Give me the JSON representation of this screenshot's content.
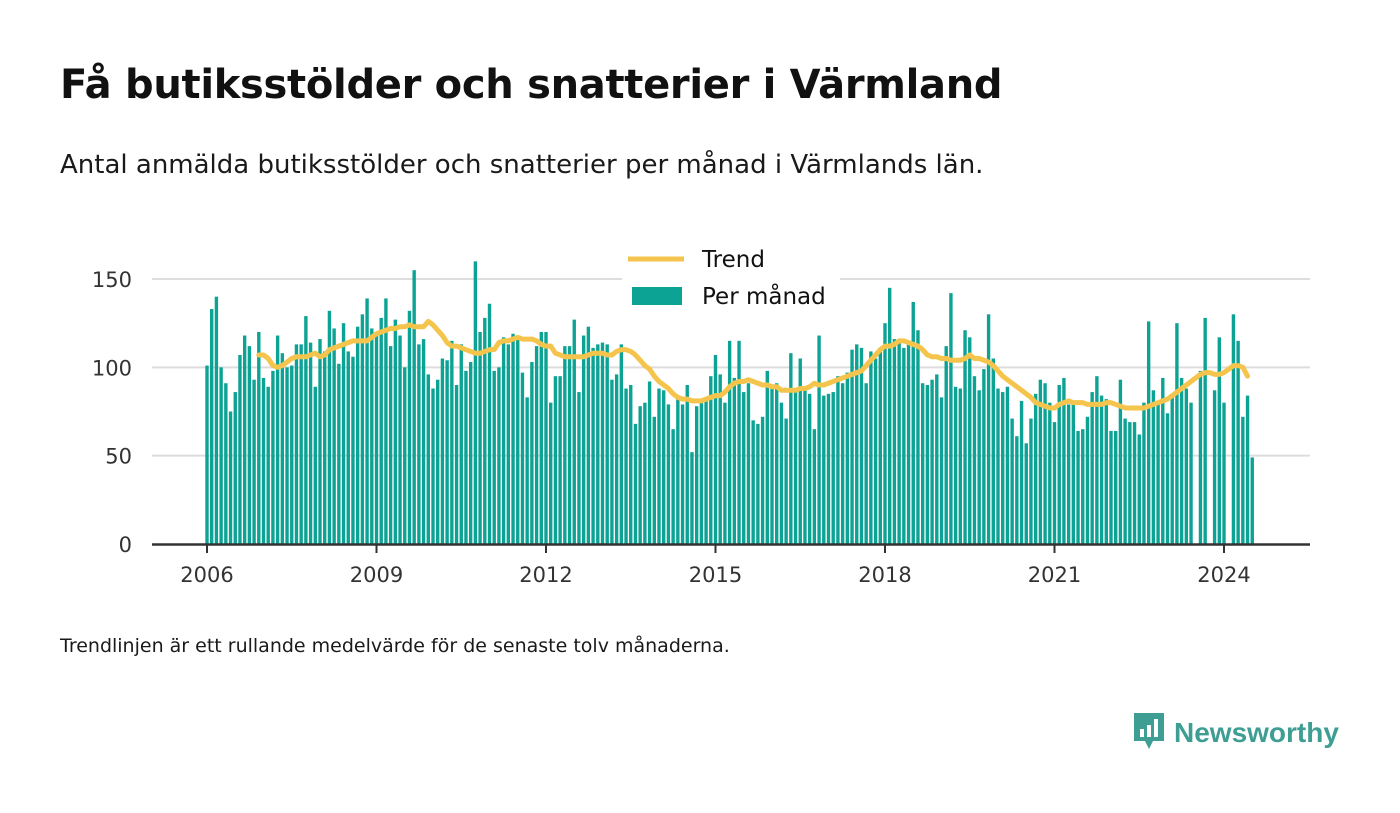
{
  "title": "Få butiksstölder och snatterier i Värmland",
  "subtitle": "Antal anmälda butiksstölder och snatterier per månad i Värmlands län.",
  "footnote": "Trendlinjen är ett rullande medelvärde för de senaste tolv månaderna.",
  "brand": {
    "name": "Newsworthy",
    "icon": "newsworthy-logo-icon",
    "color": "#3e9e94"
  },
  "colors": {
    "bar": "#0da394",
    "trend": "#f5c44c",
    "grid": "#dddddd",
    "axis": "#333333"
  },
  "chart_data": {
    "type": "bar",
    "x_start": "2006-01",
    "x_end": "2024-07",
    "xticks": [
      "2006",
      "2009",
      "2012",
      "2015",
      "2018",
      "2021",
      "2024"
    ],
    "yticks": [
      0,
      50,
      100,
      150
    ],
    "ylim": [
      0,
      160
    ],
    "grid": true,
    "legend": [
      "Trend",
      "Per månad"
    ],
    "legend_position": "top-center",
    "series": [
      {
        "name": "Per månad",
        "kind": "bar",
        "values": [
          101,
          133,
          140,
          100,
          91,
          75,
          86,
          107,
          118,
          112,
          93,
          120,
          94,
          89,
          98,
          118,
          108,
          100,
          101,
          113,
          113,
          129,
          114,
          89,
          116,
          109,
          132,
          122,
          102,
          125,
          109,
          106,
          123,
          130,
          139,
          122,
          118,
          128,
          139,
          112,
          127,
          118,
          100,
          132,
          155,
          113,
          116,
          96,
          88,
          93,
          105,
          104,
          115,
          90,
          113,
          98,
          103,
          160,
          120,
          128,
          136,
          98,
          100,
          117,
          113,
          119,
          118,
          97,
          83,
          103,
          112,
          120,
          120,
          80,
          95,
          95,
          112,
          112,
          127,
          86,
          118,
          123,
          111,
          113,
          114,
          113,
          93,
          96,
          113,
          88,
          90,
          68,
          78,
          80,
          92,
          72,
          88,
          87,
          79,
          65,
          82,
          79,
          90,
          52,
          78,
          80,
          82,
          95,
          107,
          96,
          80,
          115,
          94,
          115,
          86,
          91,
          70,
          68,
          72,
          98,
          89,
          91,
          80,
          71,
          108,
          86,
          105,
          88,
          85,
          65,
          118,
          84,
          85,
          86,
          95,
          91,
          97,
          110,
          113,
          111,
          91,
          109,
          105,
          109,
          125,
          145,
          116,
          116,
          111,
          115,
          137,
          121,
          91,
          90,
          93,
          96,
          83,
          112,
          142,
          89,
          88,
          121,
          117,
          95,
          87,
          99,
          130,
          105,
          88,
          86,
          89,
          71,
          61,
          81,
          57,
          71,
          85,
          93,
          91,
          80,
          69,
          90,
          94,
          79,
          80,
          64,
          65,
          72,
          86,
          95,
          84,
          82,
          64,
          64,
          93,
          71,
          69,
          69,
          62,
          80,
          126,
          87,
          79,
          94,
          74,
          84,
          125,
          94,
          88,
          80,
          0,
          98,
          128,
          0,
          87,
          117,
          80,
          0,
          130,
          115,
          72,
          84,
          49
        ]
      },
      {
        "name": "Trend",
        "kind": "line",
        "start": "2006-12",
        "values": [
          107,
          107,
          105,
          101,
          100,
          101,
          103,
          105,
          106,
          106,
          106,
          107,
          108,
          106,
          107,
          110,
          111,
          112,
          113,
          114,
          115,
          115,
          115,
          115,
          117,
          119,
          120,
          121,
          122,
          122,
          123,
          123,
          124,
          123,
          123,
          123,
          126,
          124,
          121,
          118,
          114,
          112,
          112,
          111,
          110,
          109,
          108,
          108,
          109,
          110,
          110,
          114,
          115,
          115,
          116,
          117,
          116,
          116,
          116,
          115,
          113,
          112,
          112,
          108,
          107,
          106,
          106,
          106,
          106,
          106,
          107,
          108,
          108,
          108,
          107,
          107,
          109,
          110,
          110,
          109,
          107,
          104,
          101,
          99,
          95,
          92,
          90,
          88,
          85,
          83,
          82,
          82,
          81,
          81,
          81,
          82,
          83,
          84,
          84,
          86,
          89,
          91,
          92,
          92,
          93,
          92,
          91,
          90,
          90,
          89,
          89,
          87,
          87,
          87,
          87,
          88,
          88,
          89,
          91,
          90,
          90,
          91,
          92,
          93,
          94,
          95,
          96,
          97,
          98,
          101,
          104,
          107,
          110,
          112,
          112,
          113,
          115,
          115,
          114,
          113,
          112,
          110,
          107,
          106,
          106,
          105,
          105,
          104,
          104,
          104,
          105,
          107,
          105,
          105,
          104,
          103,
          101,
          98,
          95,
          93,
          91,
          89,
          87,
          85,
          83,
          80,
          79,
          78,
          77,
          77,
          79,
          80,
          81,
          80,
          80,
          80,
          79,
          79,
          79,
          79,
          80,
          80,
          79,
          78,
          77,
          77,
          77,
          77,
          77,
          78,
          79,
          80,
          81,
          82,
          84,
          86,
          88,
          90,
          92,
          94,
          96,
          97,
          97,
          96,
          96,
          97,
          99,
          101,
          101,
          100,
          95
        ]
      }
    ]
  }
}
